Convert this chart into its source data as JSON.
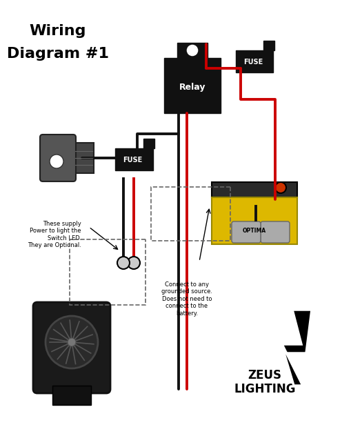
{
  "bg_color": "#ffffff",
  "wire_red": "#cc0000",
  "wire_black": "#111111",
  "comp_black": "#111111",
  "battery_yellow": "#ddb800",
  "battery_gray": "#999999",
  "annotation1_lines": [
    "Connect to any",
    "grounded source.",
    "Does not need to",
    "connect to the",
    "battery."
  ],
  "annotation2_lines": [
    "These supply",
    "Power to light the",
    "Switch LED.",
    "They are Optional."
  ],
  "title1": "Wiring",
  "title2": "Diagram #1",
  "zeus_line1": "ZEUS",
  "zeus_line2": "LIGHTING"
}
